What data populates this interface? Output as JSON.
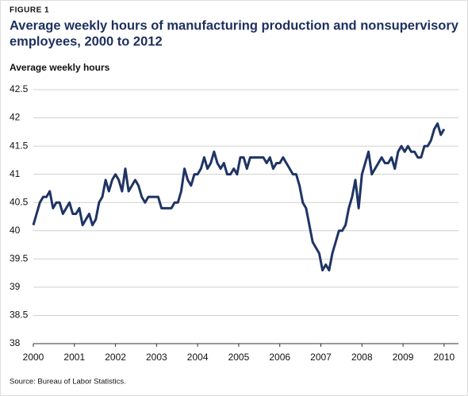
{
  "chart_data": {
    "type": "line",
    "figure_label": "FIGURE 1",
    "title": [
      "Average weekly hours of manufacturing production and nonsupervisory",
      "employees, 2000 to 2012"
    ],
    "y_label": "Average weekly hours",
    "source": "Source: Bureau of Labor Statistics.",
    "x": [
      2000,
      2000.08,
      2000.16,
      2000.24,
      2000.32,
      2000.4,
      2000.48,
      2000.56,
      2000.64,
      2000.72,
      2000.8,
      2000.88,
      2000.96,
      2001.04,
      2001.12,
      2001.2,
      2001.28,
      2001.36,
      2001.44,
      2001.52,
      2001.6,
      2001.68,
      2001.76,
      2001.84,
      2001.92,
      2002,
      2002.08,
      2002.16,
      2002.24,
      2002.32,
      2002.4,
      2002.48,
      2002.56,
      2002.64,
      2002.72,
      2002.8,
      2002.88,
      2002.96,
      2003.04,
      2003.12,
      2003.2,
      2003.28,
      2003.36,
      2003.44,
      2003.52,
      2003.6,
      2003.68,
      2003.76,
      2003.84,
      2003.92,
      2004,
      2004.08,
      2004.16,
      2004.24,
      2004.32,
      2004.4,
      2004.48,
      2004.56,
      2004.64,
      2004.72,
      2004.8,
      2004.88,
      2004.96,
      2005.04,
      2005.12,
      2005.2,
      2005.28,
      2005.36,
      2005.44,
      2005.52,
      2005.6,
      2005.68,
      2005.76,
      2005.84,
      2005.92,
      2006,
      2006.08,
      2006.16,
      2006.24,
      2006.32,
      2006.4,
      2006.48,
      2006.56,
      2006.64,
      2006.72,
      2006.8,
      2006.88,
      2006.96,
      2007.04,
      2007.12,
      2007.2,
      2007.28,
      2007.36,
      2007.44,
      2007.52,
      2007.6,
      2007.68,
      2007.76,
      2007.84,
      2007.92,
      2008,
      2008.08,
      2008.16,
      2008.24,
      2008.32,
      2008.4,
      2008.48,
      2008.56,
      2008.64,
      2008.72,
      2008.8,
      2008.88,
      2008.96,
      2009.04,
      2009.12,
      2009.2,
      2009.28,
      2009.36,
      2009.44,
      2009.52,
      2009.6,
      2009.68,
      2009.76,
      2009.84,
      2009.92,
      2010
    ],
    "series": [
      {
        "color": "#1f3464",
        "values": [
          40.1,
          40.3,
          40.5,
          40.6,
          40.6,
          40.7,
          40.4,
          40.5,
          40.5,
          40.3,
          40.4,
          40.5,
          40.3,
          40.3,
          40.4,
          40.1,
          40.2,
          40.3,
          40.1,
          40.2,
          40.5,
          40.6,
          40.9,
          40.7,
          40.9,
          41.0,
          40.9,
          40.7,
          41.1,
          40.7,
          40.8,
          40.9,
          40.8,
          40.6,
          40.5,
          40.6,
          40.6,
          40.6,
          40.6,
          40.4,
          40.4,
          40.4,
          40.4,
          40.5,
          40.5,
          40.7,
          41.1,
          40.9,
          40.8,
          41.0,
          41.0,
          41.1,
          41.3,
          41.1,
          41.2,
          41.4,
          41.2,
          41.1,
          41.2,
          41.0,
          41.0,
          41.1,
          41.0,
          41.3,
          41.3,
          41.1,
          41.3,
          41.3,
          41.3,
          41.3,
          41.3,
          41.2,
          41.3,
          41.1,
          41.2,
          41.2,
          41.3,
          41.2,
          41.1,
          41.0,
          41.0,
          40.8,
          40.5,
          40.4,
          40.1,
          39.8,
          39.7,
          39.6,
          39.3,
          39.4,
          39.3,
          39.6,
          39.8,
          40.0,
          40.0,
          40.1,
          40.4,
          40.6,
          40.9,
          40.4,
          41.0,
          41.2,
          41.4,
          41.0,
          41.1,
          41.2,
          41.3,
          41.2,
          41.2,
          41.3,
          41.1,
          41.4,
          41.5,
          41.4,
          41.5,
          41.4,
          41.4,
          41.3,
          41.3,
          41.5,
          41.5,
          41.6,
          41.8,
          41.9,
          41.7,
          41.8
        ]
      }
    ],
    "xlim": [
      2000,
      2010.35
    ],
    "xticks": [
      2000,
      2001,
      2002,
      2003,
      2004,
      2005,
      2006,
      2007,
      2008,
      2009,
      2010
    ],
    "ylim": [
      38,
      42.5
    ],
    "yticks": [
      38,
      38.5,
      39,
      39.5,
      40,
      40.5,
      41,
      41.5,
      42,
      42.5
    ],
    "grid": true
  }
}
